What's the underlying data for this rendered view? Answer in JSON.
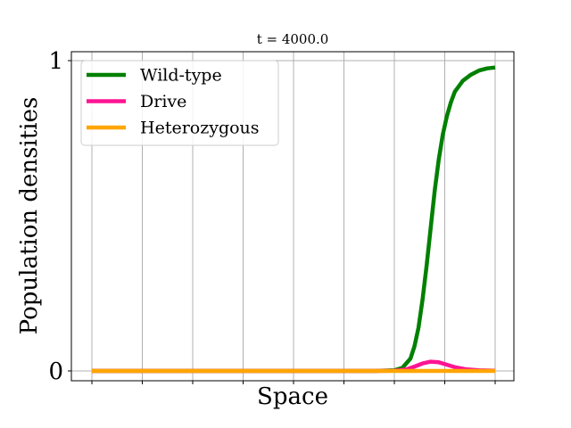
{
  "chart_data": {
    "type": "line",
    "title": "t = 4000.0",
    "xlabel": "Space",
    "ylabel": "Population densities",
    "xlim": [
      0,
      1
    ],
    "ylim": [
      0,
      1
    ],
    "x_ticks": [
      0,
      0.125,
      0.25,
      0.375,
      0.5,
      0.625,
      0.75,
      0.875,
      1.0
    ],
    "x_tick_labels": [],
    "y_ticks": [
      0,
      1
    ],
    "y_tick_labels": [
      "0",
      "1"
    ],
    "grid": "vertical",
    "legend_position": "top-left",
    "series": [
      {
        "name": "Wild-type",
        "color": "#008000",
        "x": [
          0,
          0.1,
          0.2,
          0.3,
          0.4,
          0.5,
          0.6,
          0.7,
          0.75,
          0.77,
          0.79,
          0.8,
          0.81,
          0.82,
          0.83,
          0.84,
          0.85,
          0.86,
          0.87,
          0.88,
          0.89,
          0.9,
          0.92,
          0.94,
          0.96,
          0.98,
          1.0
        ],
        "y": [
          0,
          0,
          0,
          0,
          0,
          0,
          0,
          0,
          0.002,
          0.01,
          0.04,
          0.08,
          0.14,
          0.23,
          0.34,
          0.46,
          0.58,
          0.68,
          0.76,
          0.82,
          0.865,
          0.9,
          0.935,
          0.955,
          0.968,
          0.975,
          0.978
        ]
      },
      {
        "name": "Drive",
        "color": "#ff1493",
        "x": [
          0,
          0.1,
          0.2,
          0.3,
          0.4,
          0.5,
          0.6,
          0.7,
          0.75,
          0.78,
          0.8,
          0.82,
          0.84,
          0.86,
          0.88,
          0.9,
          0.93,
          0.96,
          1.0
        ],
        "y": [
          0,
          0,
          0,
          0,
          0,
          0,
          0,
          0,
          0.001,
          0.005,
          0.014,
          0.024,
          0.03,
          0.028,
          0.02,
          0.012,
          0.005,
          0.002,
          0.001
        ]
      },
      {
        "name": "Heterozygous",
        "color": "#ffa500",
        "x": [
          0,
          1.0
        ],
        "y": [
          0,
          0
        ]
      }
    ]
  }
}
